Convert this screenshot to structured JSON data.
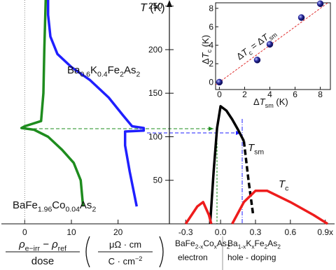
{
  "chart_data": [
    {
      "type": "line",
      "ylabel": [
        {
          "t": "T",
          "italic": true
        },
        {
          "t": " (K)"
        }
      ],
      "xlabel": {
        "numerator": [
          {
            "t": "ρ",
            "italic": true
          },
          {
            "t": "e−irr",
            "sub": true
          },
          {
            "t": " − ρ",
            "italic": true
          },
          {
            "t": "ref",
            "sub": true
          }
        ],
        "denominator": [
          {
            "t": "dose"
          }
        ],
        "unit_numerator": [
          {
            "t": "μΩ · cm"
          }
        ],
        "unit_denominator": [
          {
            "t": "C · cm"
          },
          {
            "t": "−2",
            "sup": true
          }
        ]
      },
      "xlim": [
        -5,
        31
      ],
      "xticks": [
        0,
        10,
        20
      ],
      "ylim": [
        0,
        257
      ],
      "yticks": [
        50,
        100,
        150,
        200,
        250
      ],
      "series": [
        {
          "name": [
            {
              "t": "Ba"
            },
            {
              "t": "0.6",
              "sub": true
            },
            {
              "t": "K"
            },
            {
              "t": "0.4",
              "sub": true
            },
            {
              "t": "Fe"
            },
            {
              "t": "2",
              "sub": true
            },
            {
              "t": "As"
            },
            {
              "t": "2",
              "sub": true
            }
          ],
          "color": "#1f1fff",
          "x": [
            5,
            5,
            5.5,
            7,
            10,
            14,
            18,
            21,
            23,
            25.5,
            25.5,
            21.5,
            21.5,
            22.5,
            24
          ],
          "values": [
            257,
            240,
            215,
            195,
            180,
            165,
            145,
            125,
            112,
            110,
            107,
            106,
            90,
            60,
            20
          ]
        },
        {
          "name": [
            {
              "t": "BaFe"
            },
            {
              "t": "1.96",
              "sub": true
            },
            {
              "t": "Co"
            },
            {
              "t": "0.04",
              "sub": true
            },
            {
              "t": "As"
            },
            {
              "t": "2",
              "sub": true
            }
          ],
          "color": "#1e8c1e",
          "x": [
            4.5,
            4.2,
            4,
            3.5,
            0,
            -0.7,
            2,
            5,
            8,
            10.5,
            12,
            12.5
          ],
          "values": [
            257,
            200,
            150,
            118,
            112,
            110,
            108,
            100,
            85,
            70,
            50,
            20
          ]
        }
      ]
    },
    {
      "type": "line",
      "xlim": [
        -0.44,
        0.98
      ],
      "xticks": [
        -0.3,
        {
          "value": 0,
          "label": "0.0"
        },
        0.3,
        0.6,
        {
          "value": 0.9,
          "label": "0.9x"
        }
      ],
      "ylim": [
        0,
        257
      ],
      "series": [
        {
          "name": [
            {
              "t": "T",
              "italic": true
            },
            {
              "t": "sm",
              "sub": true
            }
          ],
          "color": "#000000",
          "x": [
            -0.09,
            -0.06,
            -0.03,
            0,
            0.05,
            0.1,
            0.15,
            0.2
          ],
          "values": [
            0,
            60,
            110,
            135,
            130,
            120,
            108,
            95
          ]
        },
        {
          "color": "#000000",
          "dashed": true,
          "x": [
            0.2,
            0.24,
            0.28
          ],
          "values": [
            95,
            50,
            10
          ]
        },
        {
          "name": [
            {
              "t": "T",
              "italic": true
            },
            {
              "t": "c",
              "sub": true
            }
          ],
          "color": "#ee1c1c",
          "x": [
            -0.3,
            -0.2,
            -0.15,
            -0.1,
            -0.08,
            null,
            0.1,
            0.2,
            0.3,
            0.4,
            0.6,
            0.8,
            0.92
          ],
          "values": [
            0,
            20,
            25,
            10,
            0,
            null,
            0,
            25,
            38,
            38,
            25,
            10,
            0
          ]
        }
      ],
      "labels": {
        "electron_compound": [
          {
            "t": "BaFe"
          },
          {
            "t": "2-x",
            "sub": true
          },
          {
            "t": "Co"
          },
          {
            "t": "x",
            "sub": true
          },
          {
            "t": "As"
          },
          {
            "t": "2",
            "sub": true
          }
        ],
        "electron": "electron",
        "hole_compound": [
          {
            "t": "Ba"
          },
          {
            "t": "1-x",
            "sub": true
          },
          {
            "t": "K"
          },
          {
            "t": "x",
            "sub": true
          },
          {
            "t": "Fe"
          },
          {
            "t": "2",
            "sub": true
          },
          {
            "t": "As"
          },
          {
            "t": "2",
            "sub": true
          }
        ],
        "hole": "hole - doping"
      }
    },
    {
      "type": "scatter",
      "xlabel": [
        {
          "t": "Δ"
        },
        {
          "t": "T",
          "italic": true
        },
        {
          "t": "sm",
          "sub": true
        },
        {
          "t": " (K)"
        }
      ],
      "ylabel": [
        {
          "t": "Δ"
        },
        {
          "t": "T",
          "italic": true
        },
        {
          "t": "c",
          "sub": true
        },
        {
          "t": " (K)"
        }
      ],
      "annotation": [
        {
          "t": "Δ"
        },
        {
          "t": "T",
          "italic": true
        },
        {
          "t": "c",
          "sub": true
        },
        {
          "t": " = Δ"
        },
        {
          "t": "T",
          "italic": true
        },
        {
          "t": "sm",
          "sub": true
        }
      ],
      "xlim": [
        -0.3,
        8.8
      ],
      "xticks": [
        0,
        2,
        4,
        6,
        8
      ],
      "ylim": [
        -0.8,
        8.6
      ],
      "yticks": [
        0,
        2,
        4,
        6,
        8
      ],
      "x": [
        0,
        3,
        4,
        6.5,
        8
      ],
      "values": [
        0,
        2.4,
        4.1,
        7,
        8.5
      ],
      "color": "#1a1a8c",
      "fit_color": "#e03030"
    }
  ]
}
